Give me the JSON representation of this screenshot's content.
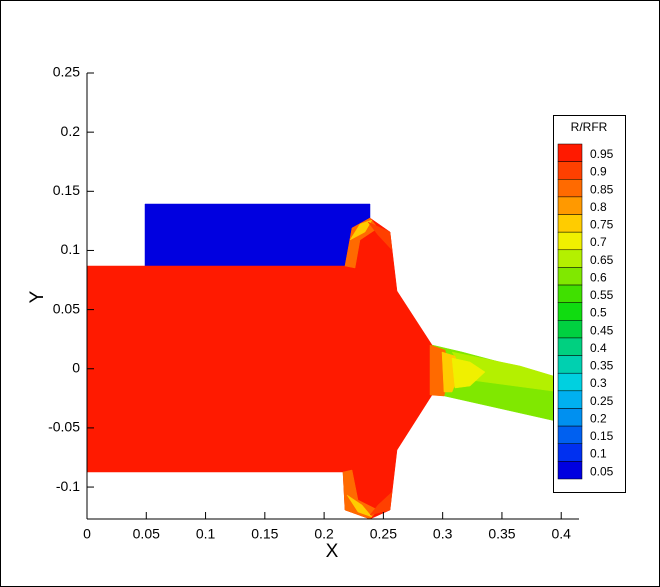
{
  "chart_data": {
    "type": "contour",
    "xlabel": "X",
    "ylabel": "Y",
    "xlim": [
      0,
      0.415
    ],
    "ylim": [
      -0.127,
      0.25
    ],
    "xticks": [
      0,
      0.05,
      0.1,
      0.15,
      0.2,
      0.25,
      0.3,
      0.35,
      0.4
    ],
    "yticks": [
      -0.1,
      -0.05,
      0,
      0.05,
      0.1,
      0.15,
      0.2,
      0.25
    ],
    "legend_title": "R/RFR",
    "legend": "right",
    "levels": [
      {
        "value": 0.95,
        "color": "#ff1a00"
      },
      {
        "value": 0.9,
        "color": "#ff4000"
      },
      {
        "value": 0.85,
        "color": "#ff6a00"
      },
      {
        "value": 0.8,
        "color": "#ff9900"
      },
      {
        "value": 0.75,
        "color": "#ffcc00"
      },
      {
        "value": 0.7,
        "color": "#f0f000"
      },
      {
        "value": 0.65,
        "color": "#b4f000"
      },
      {
        "value": 0.6,
        "color": "#80e800"
      },
      {
        "value": 0.55,
        "color": "#40e000"
      },
      {
        "value": 0.5,
        "color": "#10dc10"
      },
      {
        "value": 0.45,
        "color": "#00d040"
      },
      {
        "value": 0.4,
        "color": "#00d080"
      },
      {
        "value": 0.35,
        "color": "#00d0b0"
      },
      {
        "value": 0.3,
        "color": "#00d0e0"
      },
      {
        "value": 0.25,
        "color": "#00b0f0"
      },
      {
        "value": 0.2,
        "color": "#0090f0"
      },
      {
        "value": 0.15,
        "color": "#0060f0"
      },
      {
        "value": 0.1,
        "color": "#0030f0"
      },
      {
        "value": 0.05,
        "color": "#0000e0"
      }
    ]
  }
}
